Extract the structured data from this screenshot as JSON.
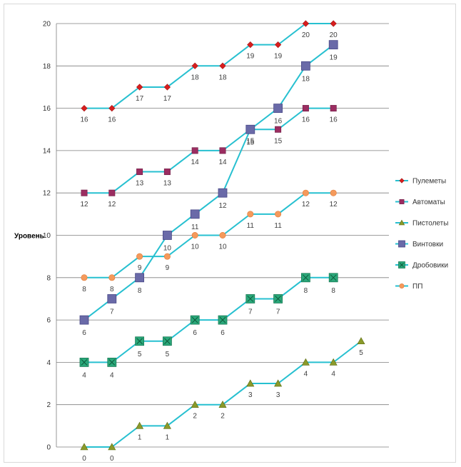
{
  "chart_data": {
    "type": "line",
    "ylabel": "Уровень",
    "ylim": [
      0,
      20
    ],
    "yticks": [
      0,
      2,
      4,
      6,
      8,
      10,
      12,
      14,
      16,
      18,
      20
    ],
    "grid": true,
    "legend_position": "right",
    "line_color": "#27c0d0",
    "series": [
      {
        "name": "Пулеметы",
        "marker": "diamond",
        "color": "#d81e1e",
        "values": [
          16,
          16,
          17,
          17,
          18,
          18,
          19,
          19,
          20,
          20,
          null
        ]
      },
      {
        "name": "Автоматы",
        "marker": "square",
        "color": "#9b2d61",
        "values": [
          12,
          12,
          13,
          13,
          14,
          14,
          15,
          15,
          16,
          16,
          null
        ]
      },
      {
        "name": "Пистолеты",
        "marker": "triangle",
        "color": "#8b9a2a",
        "values": [
          0,
          0,
          1,
          1,
          2,
          2,
          3,
          3,
          4,
          4,
          5
        ]
      },
      {
        "name": "Винтовки",
        "marker": "bigsquare",
        "color": "#6a6aa8",
        "values": [
          6,
          7,
          8,
          10,
          11,
          12,
          15,
          16,
          18,
          19,
          null
        ]
      },
      {
        "name": "Дробовики",
        "marker": "xsquare",
        "color": "#2aa87a",
        "values": [
          4,
          4,
          5,
          5,
          6,
          6,
          7,
          7,
          8,
          8,
          null
        ]
      },
      {
        "name": "ПП",
        "marker": "circle",
        "color": "#f59a5c",
        "values": [
          8,
          8,
          9,
          9,
          10,
          10,
          11,
          11,
          12,
          12,
          null
        ]
      }
    ]
  }
}
